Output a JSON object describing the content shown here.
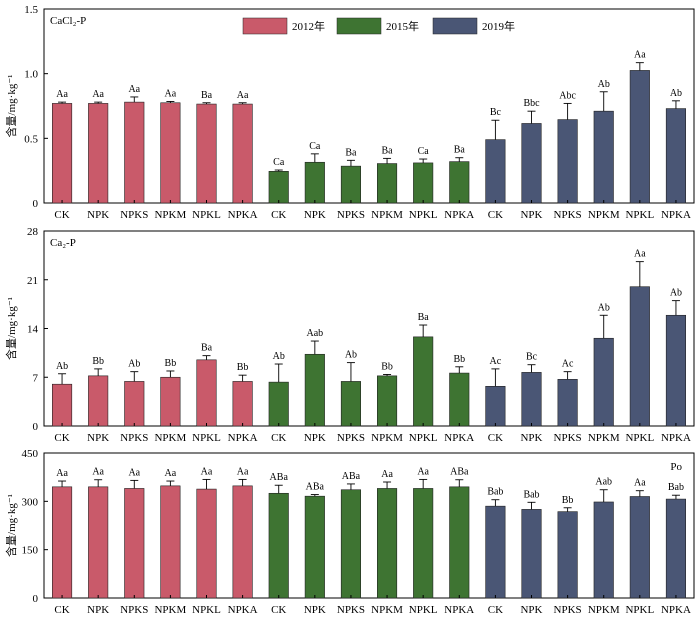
{
  "legend": [
    {
      "label": "2012年",
      "color": "#c95a6a"
    },
    {
      "label": "2015年",
      "color": "#3e7432"
    },
    {
      "label": "2019年",
      "color": "#4a5675"
    }
  ],
  "ylabel": "含量/mg·kg⁻¹",
  "chart_data": [
    {
      "type": "bar",
      "panel_label": "CaCl₂-P",
      "ylim": [
        0,
        1.5
      ],
      "yticks": [
        "0",
        "0.5",
        "1.0",
        "1.5"
      ],
      "categories": [
        "CK",
        "NPK",
        "NPKS",
        "NPKM",
        "NPKL",
        "NPKA",
        "CK",
        "NPK",
        "NPKS",
        "NPKM",
        "NPKL",
        "NPKA",
        "CK",
        "NPK",
        "NPKS",
        "NPKM",
        "NPKL",
        "NPKA"
      ],
      "series_index": [
        0,
        0,
        0,
        0,
        0,
        0,
        1,
        1,
        1,
        1,
        1,
        1,
        2,
        2,
        2,
        2,
        2,
        2
      ],
      "values": [
        0.77,
        0.77,
        0.78,
        0.775,
        0.765,
        0.765,
        0.245,
        0.315,
        0.285,
        0.305,
        0.31,
        0.32,
        0.49,
        0.615,
        0.645,
        0.71,
        1.025,
        0.73
      ],
      "errors": [
        0.01,
        0.01,
        0.04,
        0.01,
        0.01,
        0.01,
        0.01,
        0.065,
        0.045,
        0.04,
        0.03,
        0.03,
        0.15,
        0.095,
        0.125,
        0.15,
        0.06,
        0.06
      ],
      "labels": [
        "Aa",
        "Aa",
        "Aa",
        "Aa",
        "Ba",
        "Aa",
        "Ca",
        "Ca",
        "Ba",
        "Ba",
        "Ca",
        "Ba",
        "Bc",
        "Bbc",
        "Abc",
        "Ab",
        "Aa",
        "Ab"
      ]
    },
    {
      "type": "bar",
      "panel_label": "Ca₂-P",
      "ylim": [
        0,
        28
      ],
      "yticks": [
        "0",
        "7",
        "14",
        "21",
        "28"
      ],
      "categories": [
        "CK",
        "NPK",
        "NPKS",
        "NPKM",
        "NPKL",
        "NPKA",
        "CK",
        "NPK",
        "NPKS",
        "NPKM",
        "NPKL",
        "NPKA",
        "CK",
        "NPK",
        "NPKS",
        "NPKM",
        "NPKL",
        "NPKA"
      ],
      "series_index": [
        0,
        0,
        0,
        0,
        0,
        0,
        1,
        1,
        1,
        1,
        1,
        1,
        2,
        2,
        2,
        2,
        2,
        2
      ],
      "values": [
        6.0,
        7.2,
        6.4,
        7.0,
        9.5,
        6.4,
        6.3,
        10.3,
        6.4,
        7.2,
        12.8,
        7.6,
        5.7,
        7.7,
        6.7,
        12.6,
        20.0,
        15.9
      ],
      "errors": [
        1.5,
        1.0,
        1.4,
        0.9,
        0.6,
        0.9,
        2.6,
        1.9,
        2.7,
        0.2,
        1.7,
        0.9,
        2.5,
        1.1,
        1.1,
        3.3,
        3.6,
        2.1
      ],
      "labels": [
        "Ab",
        "Bb",
        "Ab",
        "Bb",
        "Ba",
        "Bb",
        "Ab",
        "Aab",
        "Ab",
        "Bb",
        "Ba",
        "Bb",
        "Ac",
        "Bc",
        "Ac",
        "Ab",
        "Aa",
        "Ab"
      ]
    },
    {
      "type": "bar",
      "panel_label": "Po",
      "ylim": [
        0,
        450
      ],
      "yticks": [
        "0",
        "150",
        "300",
        "450"
      ],
      "categories": [
        "CK",
        "NPK",
        "NPKS",
        "NPKM",
        "NPKL",
        "NPKA",
        "CK",
        "NPK",
        "NPKS",
        "NPKM",
        "NPKL",
        "NPKA",
        "CK",
        "NPK",
        "NPKS",
        "NPKM",
        "NPKL",
        "NPKA"
      ],
      "series_index": [
        0,
        0,
        0,
        0,
        0,
        0,
        1,
        1,
        1,
        1,
        1,
        1,
        2,
        2,
        2,
        2,
        2,
        2
      ],
      "values": [
        345,
        345,
        340,
        348,
        338,
        348,
        325,
        316,
        336,
        340,
        340,
        345,
        285,
        275,
        268,
        298,
        315,
        307
      ],
      "errors": [
        18,
        22,
        25,
        15,
        30,
        20,
        25,
        5,
        18,
        20,
        28,
        22,
        20,
        22,
        12,
        38,
        18,
        12
      ],
      "labels": [
        "Aa",
        "Aa",
        "Aa",
        "Aa",
        "Aa",
        "Aa",
        "ABa",
        "ABa",
        "ABa",
        "Aa",
        "Aa",
        "ABa",
        "Bab",
        "Bab",
        "Bb",
        "Aab",
        "Aa",
        "Bab"
      ]
    }
  ]
}
